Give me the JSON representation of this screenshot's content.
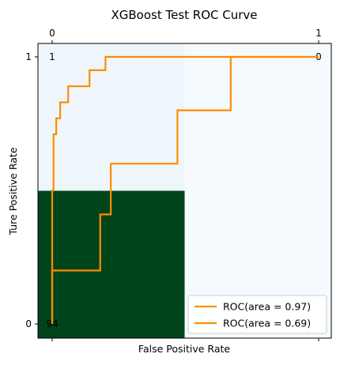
{
  "chart_data": {
    "type": "line",
    "title": "XGBoost Test ROC Curve",
    "xlabel": "False Positive Rate",
    "ylabel": "Ture Positive Rate",
    "top_ticks": [
      "0",
      "1"
    ],
    "left_ticks": [
      "1",
      "0"
    ],
    "heatmap": {
      "cells": [
        {
          "row": 0,
          "col": 0,
          "text": "1",
          "color": "#eff6fb"
        },
        {
          "row": 0,
          "col": 1,
          "text": "0",
          "color": "#f5fafe"
        },
        {
          "row": 1,
          "col": 0,
          "text": "94",
          "color": "#00441b"
        },
        {
          "row": 1,
          "col": 1,
          "text": "",
          "color": "#f5fafe"
        }
      ]
    },
    "xlim": [
      0,
      1
    ],
    "ylim": [
      0,
      1
    ],
    "series": [
      {
        "name": "ROC(area = 0.97)",
        "color": "#ff8c00",
        "points": [
          [
            0.0,
            0.0
          ],
          [
            0.0,
            0.5
          ],
          [
            0.005,
            0.5
          ],
          [
            0.005,
            0.71
          ],
          [
            0.015,
            0.71
          ],
          [
            0.015,
            0.77
          ],
          [
            0.03,
            0.77
          ],
          [
            0.03,
            0.83
          ],
          [
            0.06,
            0.83
          ],
          [
            0.06,
            0.89
          ],
          [
            0.14,
            0.89
          ],
          [
            0.14,
            0.95
          ],
          [
            0.2,
            0.95
          ],
          [
            0.2,
            1.0
          ],
          [
            1.0,
            1.0
          ]
        ]
      },
      {
        "name": "ROC(area = 0.69)",
        "color": "#ff8c00",
        "points": [
          [
            0.0,
            0.0
          ],
          [
            0.0,
            0.2
          ],
          [
            0.18,
            0.2
          ],
          [
            0.18,
            0.41
          ],
          [
            0.22,
            0.41
          ],
          [
            0.22,
            0.6
          ],
          [
            0.47,
            0.6
          ],
          [
            0.47,
            0.8
          ],
          [
            0.67,
            0.8
          ],
          [
            0.67,
            1.0
          ],
          [
            1.0,
            1.0
          ]
        ]
      }
    ],
    "legend": "lower-right"
  }
}
